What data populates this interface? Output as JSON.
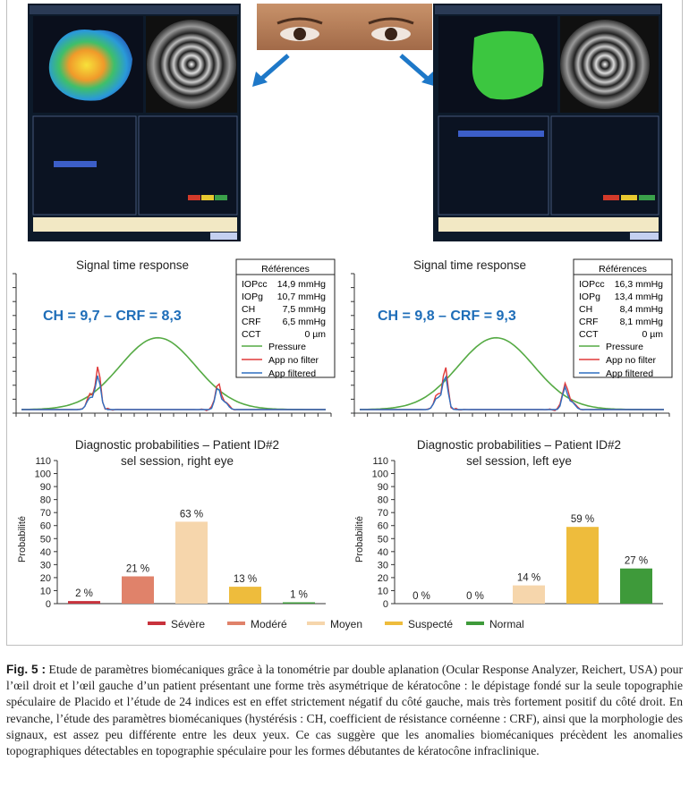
{
  "legend": [
    {
      "label": "Sévère",
      "color": "#c8323c"
    },
    {
      "label": "Modéré",
      "color": "#e0826a"
    },
    {
      "label": "Moyen",
      "color": "#f6d6ac"
    },
    {
      "label": "Suspecté",
      "color": "#eebc3c"
    },
    {
      "label": "Normal",
      "color": "#3e9a3a"
    }
  ],
  "signal": {
    "title": "Signal time response",
    "references_title": "Références",
    "series_labels": [
      "Pressure",
      "App no filter",
      "App filtered"
    ],
    "series_colors": {
      "pressure": "#55aa44",
      "app_no_filter": "#e03a3a",
      "app_filtered": "#2f6fc0"
    },
    "right": {
      "headline": "CH = 9,7 – CRF = 8,3",
      "refs": [
        [
          "IOPcc",
          "14,9 mmHg"
        ],
        [
          "IOPg",
          "10,7 mmHg"
        ],
        [
          "CH",
          "7,5 mmHg"
        ],
        [
          "CRF",
          "6,5 mmHg"
        ],
        [
          "CCT",
          "0 µm"
        ]
      ]
    },
    "left": {
      "headline": "CH = 9,8 – CRF = 9,3",
      "refs": [
        [
          "IOPcc",
          "16,3 mmHg"
        ],
        [
          "IOPg",
          "13,4 mmHg"
        ],
        [
          "CH",
          "8,4 mmHg"
        ],
        [
          "CRF",
          "8,1 mmHg"
        ],
        [
          "CCT",
          "0 µm"
        ]
      ]
    }
  },
  "chart_data": [
    {
      "type": "bar",
      "title": "Diagnostic probabilities – Patient ID#2",
      "subtitle": "sel session, right eye",
      "ylabel": "Probabilité",
      "ylim": [
        0,
        110
      ],
      "yticks": [
        0,
        10,
        20,
        30,
        40,
        50,
        60,
        70,
        80,
        90,
        100,
        110
      ],
      "categories": [
        "Sévère",
        "Modéré",
        "Moyen",
        "Suspecté",
        "Normal"
      ],
      "values": [
        2,
        21,
        63,
        13,
        1
      ],
      "value_labels": [
        "2 %",
        "21 %",
        "63 %",
        "13 %",
        "1 %"
      ]
    },
    {
      "type": "bar",
      "title": "Diagnostic probabilities – Patient ID#2",
      "subtitle": "sel session, left eye",
      "ylabel": "Probabilité",
      "ylim": [
        0,
        110
      ],
      "yticks": [
        0,
        10,
        20,
        30,
        40,
        50,
        60,
        70,
        80,
        90,
        100,
        110
      ],
      "categories": [
        "Sévère",
        "Modéré",
        "Moyen",
        "Suspecté",
        "Normal"
      ],
      "values": [
        0,
        0,
        14,
        59,
        27
      ],
      "value_labels": [
        "0 %",
        "0 %",
        "14 %",
        "59 %",
        "27 %"
      ]
    }
  ],
  "caption": {
    "label": "Fig. 5 :",
    "text": "Etude de paramètres biomécaniques grâce à la tonométrie par double aplanation (Ocular Response Analyzer, Reichert, USA) pour l’œil droit et l’œil gauche d’un patient présentant une forme très asymétrique de kératocône : le dépistage fondé sur la seule topographie spéculaire de Placido et l’étude de 24 indices est en effet strictement négatif du côté gauche, mais très fortement positif du côté droit. En revanche, l’étude des paramètres biomécaniques (hystérésis : CH, coefficient de résistance cornéenne : CRF), ainsi que la morphologie des signaux, est assez peu différente entre les deux yeux. Ce cas suggère que les anomalies biomécaniques précèdent les anomalies topographiques détectables en topographie spéculaire pour les formes débutantes de kératocône infraclinique."
  }
}
